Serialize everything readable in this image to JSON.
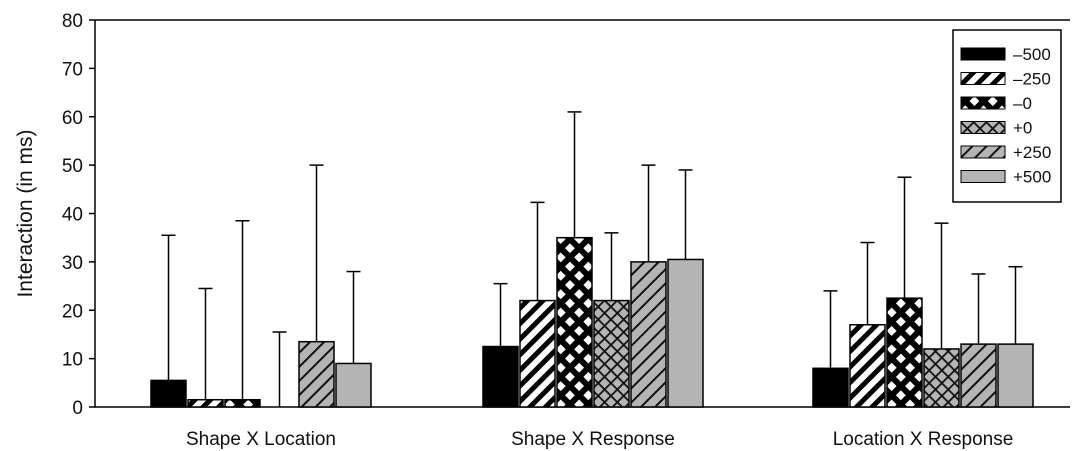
{
  "chart_data": {
    "type": "bar",
    "title": "",
    "xlabel": "",
    "ylabel": "Interaction (in ms)",
    "ylim": [
      0,
      80
    ],
    "yticks": [
      "0",
      "10",
      "20",
      "30",
      "40",
      "50",
      "60",
      "70",
      "80"
    ],
    "grid": false,
    "legend_position": "top-right",
    "categories": [
      "Shape X Location",
      "Shape X Response",
      "Location X Response"
    ],
    "series": [
      {
        "name": "–500",
        "values": [
          5.5,
          12.5,
          8
        ],
        "error_upper": [
          35.5,
          25.5,
          24
        ],
        "pattern": "solid-black"
      },
      {
        "name": "–250",
        "values": [
          1.5,
          22,
          17
        ],
        "error_upper": [
          24.5,
          42.3,
          34
        ],
        "pattern": "diagonal-bold"
      },
      {
        "name": "–0",
        "values": [
          1.5,
          35,
          22.5
        ],
        "error_upper": [
          38.5,
          61,
          47.5
        ],
        "pattern": "bold-crosshatch"
      },
      {
        "name": "+0",
        "values": [
          0,
          22,
          12
        ],
        "error_upper": [
          15.5,
          36,
          38
        ],
        "pattern": "crosshatch-gray"
      },
      {
        "name": "+250",
        "values": [
          13.5,
          30,
          13
        ],
        "error_upper": [
          50,
          50,
          27.5
        ],
        "pattern": "diagonal-gray"
      },
      {
        "name": "+500",
        "values": [
          9,
          30.5,
          13
        ],
        "error_upper": [
          28,
          49,
          29
        ],
        "pattern": "solid-gray"
      }
    ]
  }
}
